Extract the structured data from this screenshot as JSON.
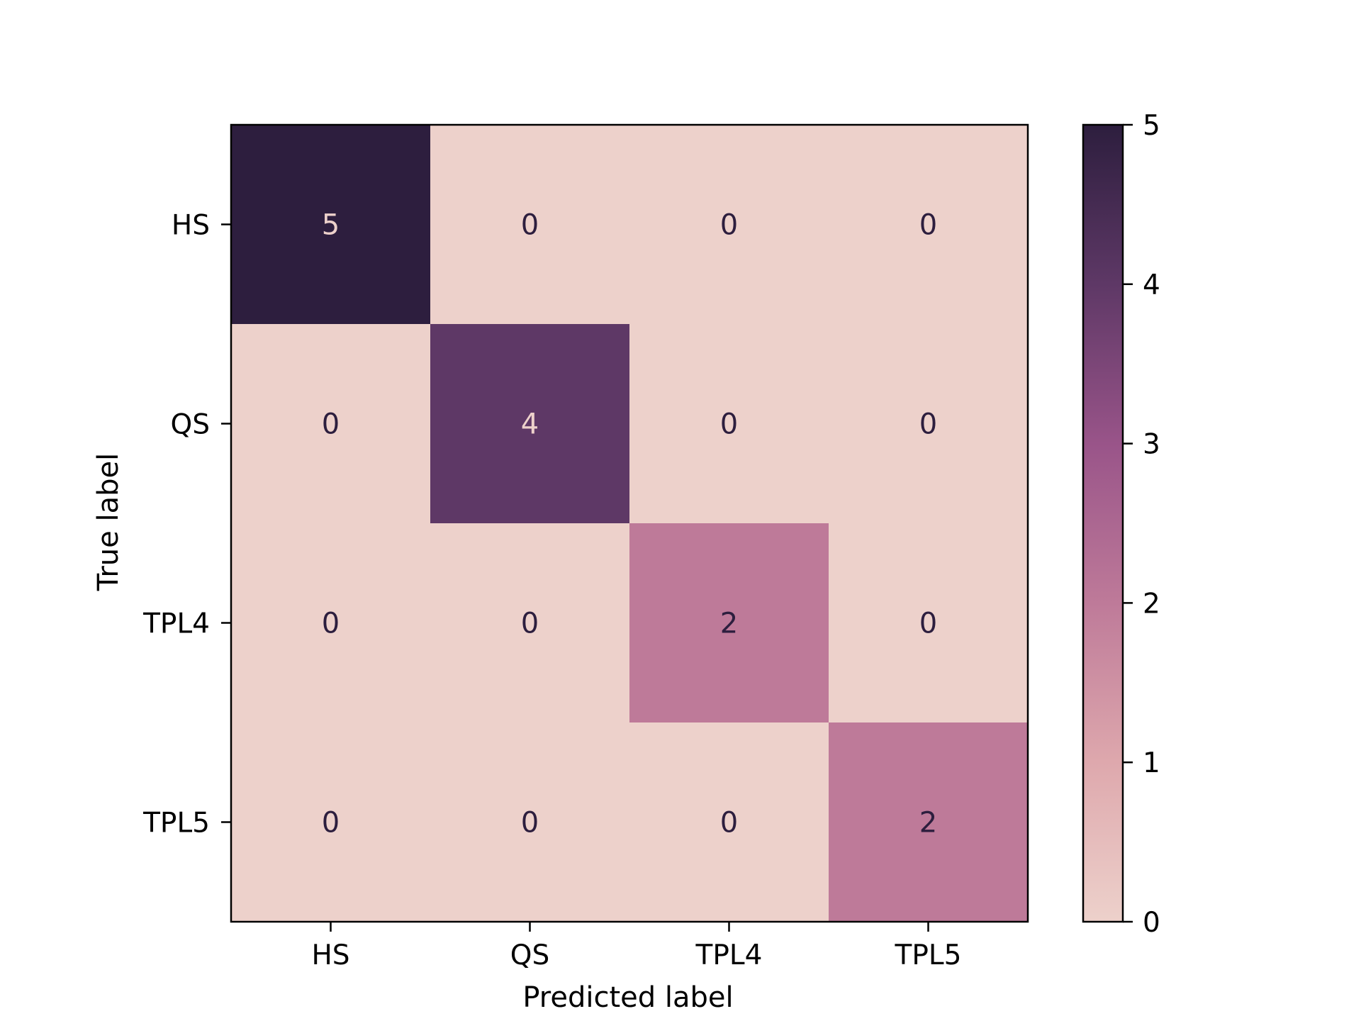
{
  "chart_data": {
    "type": "heatmap",
    "title": "",
    "xlabel": "Predicted label",
    "ylabel": "True label",
    "x_categories": [
      "HS",
      "QS",
      "TPL4",
      "TPL5"
    ],
    "y_categories": [
      "HS",
      "QS",
      "TPL4",
      "TPL5"
    ],
    "matrix": [
      [
        5,
        0,
        0,
        0
      ],
      [
        0,
        4,
        0,
        0
      ],
      [
        0,
        0,
        2,
        0
      ],
      [
        0,
        0,
        0,
        2
      ]
    ],
    "colorbar": {
      "range": [
        0,
        5
      ],
      "ticks": [
        0,
        1,
        2,
        3,
        4,
        5
      ],
      "colors": [
        "#edd1cb",
        "#dea8ad",
        "#be7a99",
        "#995489",
        "#5e3866",
        "#2d1e3e"
      ]
    },
    "text_color_on_dark": "#edd1cb",
    "text_color_on_light": "#2d1e3e"
  }
}
